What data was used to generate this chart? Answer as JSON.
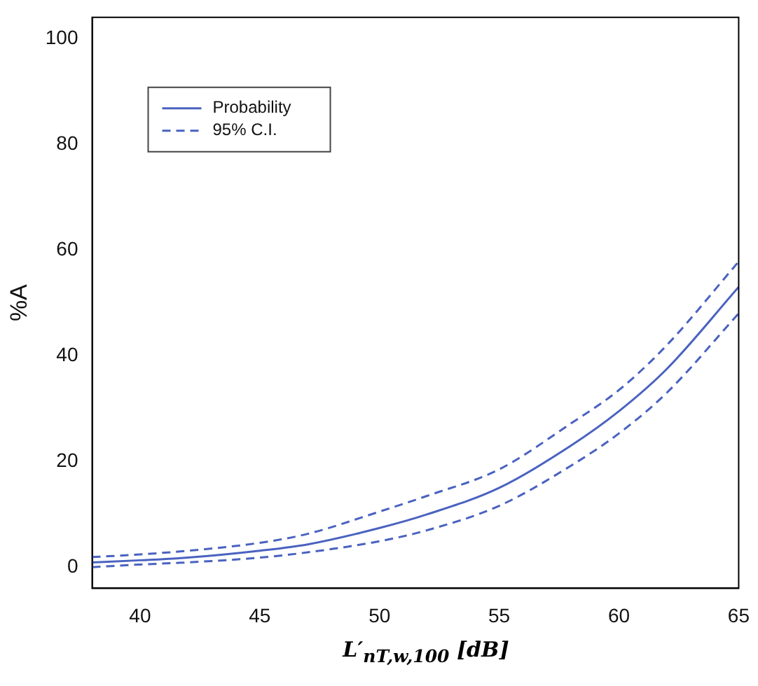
{
  "chart_data": {
    "type": "line",
    "xlabel": "L′$_{nT,w,100}$ [dB]",
    "ylabel": "%A",
    "xlim": [
      38,
      65
    ],
    "xticks": [
      40,
      45,
      50,
      55,
      60,
      65
    ],
    "ylim": [
      -4,
      104
    ],
    "yticks": [
      0,
      20,
      40,
      60,
      80,
      100
    ],
    "grid": false,
    "legend": "top left",
    "marker": "none",
    "series": [
      {
        "name": "Probability",
        "color": "#4a62c0",
        "line_style": "solid",
        "x": [
          38,
          40,
          42,
          45,
          47,
          50,
          52,
          55,
          58,
          60,
          62,
          65
        ],
        "values": [
          0.9,
          1.3,
          1.8,
          3.1,
          4.3,
          7.4,
          10,
          15,
          23,
          29.5,
          37.5,
          53
        ]
      },
      {
        "name": "95% C.I.",
        "color": "#4a62c0",
        "line_style": "dashed",
        "x": [
          38,
          40,
          42,
          45,
          47,
          50,
          52,
          55,
          58,
          60,
          62,
          65
        ],
        "values": [
          1.9,
          2.4,
          3.1,
          4.6,
          6.3,
          10.5,
          13.5,
          18.5,
          27.2,
          33.5,
          42,
          57.8
        ]
      },
      {
        "color": "#4a62c0",
        "line_style": "dashed",
        "x": [
          38,
          40,
          42,
          45,
          47,
          50,
          52,
          55,
          58,
          60,
          62,
          65
        ],
        "values": [
          0,
          0.5,
          0.9,
          1.8,
          2.8,
          4.9,
          7,
          11.6,
          19.2,
          25.3,
          33,
          48
        ]
      }
    ]
  }
}
